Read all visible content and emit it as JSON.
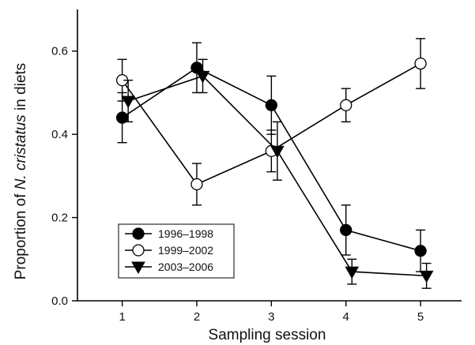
{
  "chart_data": {
    "type": "line",
    "title": "",
    "xlabel": "Sampling session",
    "ylabel_prefix": "Proportion of ",
    "ylabel_species": "N. cristatus",
    "ylabel_suffix": " in diets",
    "x": [
      1,
      2,
      3,
      4,
      5
    ],
    "x_ticks": [
      "1",
      "2",
      "3",
      "4",
      "5"
    ],
    "y_ticks": [
      "0.0",
      "0.2",
      "0.4",
      "0.6"
    ],
    "xlim": [
      0.4,
      5.55
    ],
    "ylim": [
      0,
      0.7
    ],
    "grid": false,
    "legend_position": "bottom-left",
    "series": [
      {
        "name": "1996–1998",
        "marker": "filled-circle",
        "x_offset": 0,
        "y": [
          0.44,
          0.56,
          0.47,
          0.17,
          0.12
        ],
        "err": [
          0.06,
          0.06,
          0.07,
          0.06,
          0.05
        ]
      },
      {
        "name": "1999–2002",
        "marker": "open-circle",
        "x_offset": 0,
        "y": [
          0.53,
          0.28,
          0.36,
          0.47,
          0.57
        ],
        "err": [
          0.05,
          0.05,
          0.05,
          0.04,
          0.06
        ]
      },
      {
        "name": "2003–2006",
        "marker": "filled-triangle-down",
        "x_offset": 0.08,
        "y": [
          0.48,
          0.54,
          0.36,
          0.07,
          0.06
        ],
        "err": [
          0.05,
          0.04,
          0.07,
          0.03,
          0.03
        ]
      }
    ]
  }
}
